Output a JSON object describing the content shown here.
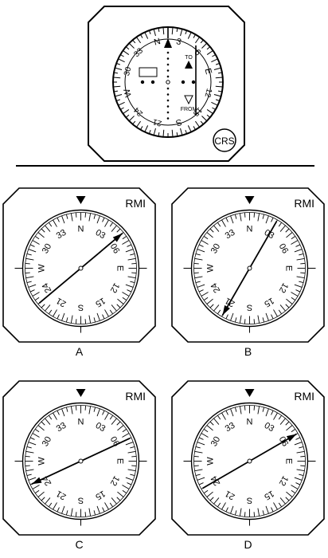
{
  "hsi": {
    "button_label": "CRS",
    "to_label": "TO",
    "from_label": "FROM",
    "ring_labels": [
      "N",
      "3",
      "6",
      "E",
      "12",
      "15",
      "S",
      "21",
      "24",
      "W",
      "30",
      "33"
    ]
  },
  "rmi": {
    "title": "RMI",
    "ring_labels": [
      "N",
      "03",
      "06",
      "E",
      "12",
      "15",
      "S",
      "21",
      "24",
      "W",
      "30",
      "33"
    ]
  },
  "options": [
    {
      "letter": "A",
      "pointer_heading": 50,
      "arrow_at": "head"
    },
    {
      "letter": "B",
      "pointer_heading": 30,
      "arrow_at": "tail"
    },
    {
      "letter": "C",
      "pointer_heading": 65,
      "arrow_at": "tail"
    },
    {
      "letter": "D",
      "pointer_heading": 60,
      "arrow_at": "head"
    }
  ],
  "colors": {
    "ink": "#000000",
    "paper": "#ffffff"
  }
}
